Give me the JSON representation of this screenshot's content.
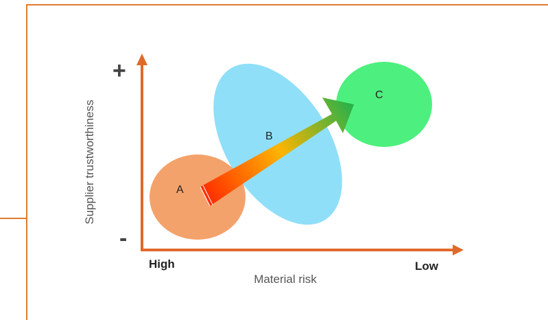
{
  "axes": {
    "y_label": "Supplier trustworthiness",
    "y_top_symbol": "+",
    "y_bottom_symbol": "-",
    "x_label": "Material risk",
    "x_left_label": "High",
    "x_right_label": "Low"
  },
  "regions": [
    {
      "label": "A",
      "color": "#f4a26b"
    },
    {
      "label": "B",
      "color": "#8fdff8"
    },
    {
      "label": "C",
      "color": "#4df07e"
    }
  ],
  "arrow": {
    "gradient_colors": [
      "#ff2a00",
      "#ffb400",
      "#22b14c"
    ]
  },
  "colors": {
    "axis": "#e06a2a",
    "frame": "#e07a2e",
    "text": "#222222"
  }
}
